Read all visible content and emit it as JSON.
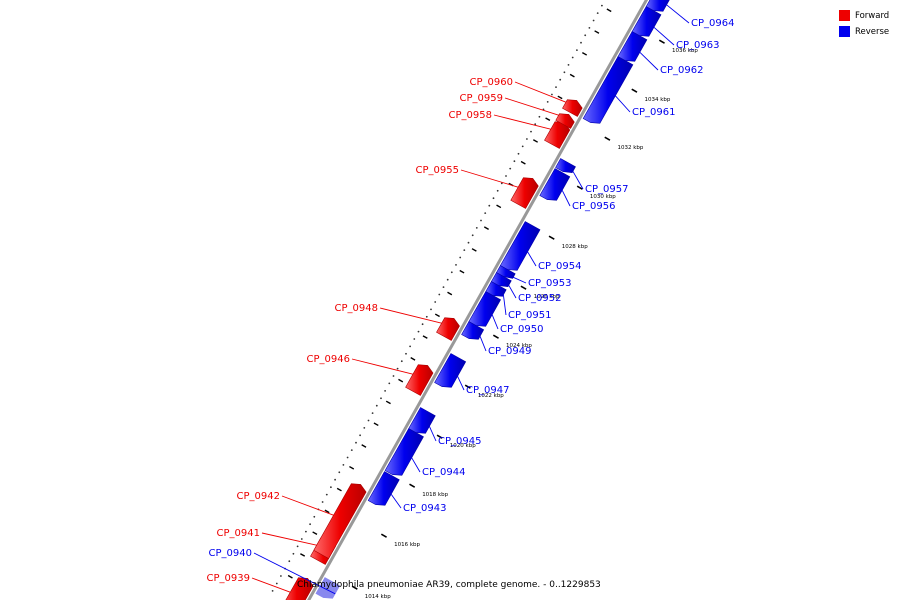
{
  "caption": "Chlamydophila pneumoniae AR39, complete genome. - 0..1229853",
  "legend": [
    {
      "label": "Forward",
      "color": "#ee0000"
    },
    {
      "label": "Reverse",
      "color": "#0000ee"
    }
  ],
  "colors": {
    "forward": "#ee0000",
    "reverse": "#0000ee",
    "backbone": "#999999",
    "faded_reverse": "#8888ee"
  },
  "ticks": [
    {
      "label": "1014 kbp"
    },
    {
      "label": "1016 kbp"
    },
    {
      "label": "1018 kbp"
    },
    {
      "label": "1020 kbp"
    },
    {
      "label": "1022 kbp"
    },
    {
      "label": "1024 kbp"
    },
    {
      "label": "1026 kbp"
    },
    {
      "label": "1028 kbp"
    },
    {
      "label": "1030 kbp"
    },
    {
      "label": "1032 kbp"
    },
    {
      "label": "1034 kbp"
    },
    {
      "label": "1036 kbp"
    }
  ],
  "genes": [
    {
      "name": "CP_0939",
      "strand": "forward"
    },
    {
      "name": "CP_0940",
      "strand": "reverse"
    },
    {
      "name": "CP_0941",
      "strand": "forward"
    },
    {
      "name": "CP_0942",
      "strand": "forward"
    },
    {
      "name": "CP_0943",
      "strand": "reverse"
    },
    {
      "name": "CP_0944",
      "strand": "reverse"
    },
    {
      "name": "CP_0945",
      "strand": "reverse"
    },
    {
      "name": "CP_0946",
      "strand": "forward"
    },
    {
      "name": "CP_0947",
      "strand": "reverse"
    },
    {
      "name": "CP_0948",
      "strand": "forward"
    },
    {
      "name": "CP_0949",
      "strand": "reverse"
    },
    {
      "name": "CP_0950",
      "strand": "reverse"
    },
    {
      "name": "CP_0951",
      "strand": "reverse"
    },
    {
      "name": "CP_0952",
      "strand": "reverse"
    },
    {
      "name": "CP_0953",
      "strand": "reverse"
    },
    {
      "name": "CP_0954",
      "strand": "reverse"
    },
    {
      "name": "CP_0955",
      "strand": "forward"
    },
    {
      "name": "CP_0956",
      "strand": "reverse"
    },
    {
      "name": "CP_0957",
      "strand": "reverse"
    },
    {
      "name": "CP_0958",
      "strand": "forward"
    },
    {
      "name": "CP_0959",
      "strand": "forward"
    },
    {
      "name": "CP_0960",
      "strand": "forward"
    },
    {
      "name": "CP_0961",
      "strand": "reverse"
    },
    {
      "name": "CP_0962",
      "strand": "reverse"
    },
    {
      "name": "CP_0963",
      "strand": "reverse"
    },
    {
      "name": "CP_0964",
      "strand": "reverse"
    }
  ]
}
